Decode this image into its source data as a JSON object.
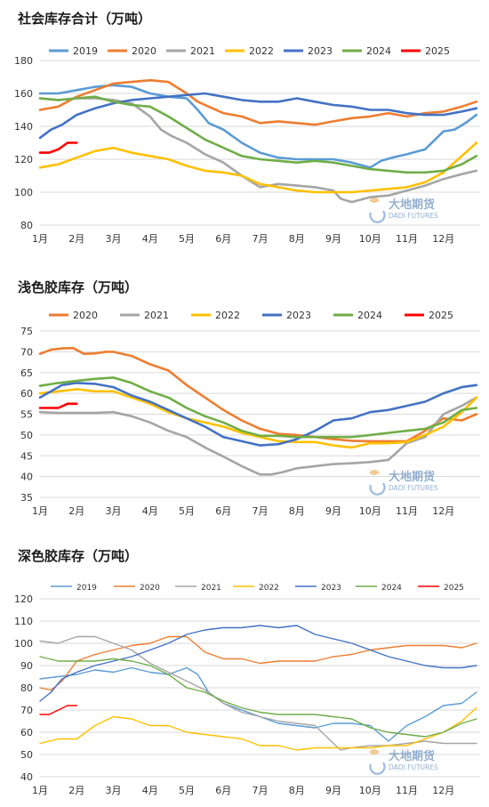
{
  "months": [
    "1月",
    "2月",
    "3月",
    "4月",
    "5月",
    "6月",
    "7月",
    "8月",
    "9月",
    "10月",
    "11月",
    "12月"
  ],
  "colors": {
    "2019": "#5B9BD5",
    "2020": "#ED7D31",
    "2021": "#A5A5A5",
    "2022": "#FFC000",
    "2023": "#4472C4",
    "2024": "#70AD47",
    "2025": "#FF0000"
  },
  "watermark": {
    "cn": "大地期货",
    "en": "DADI FUTURES",
    "icon": "dadi-logo-icon"
  },
  "chart_data": [
    {
      "type": "line",
      "title": "社会库存合计（万吨）",
      "ylim": [
        80,
        180
      ],
      "yticks": [
        80,
        100,
        120,
        140,
        160,
        180
      ],
      "legend_position": "top",
      "grid": true,
      "series": [
        {
          "name": "2019",
          "color": "#5B9BD5",
          "x": [
            1,
            1.5,
            2,
            2.5,
            3,
            3.5,
            4,
            4.5,
            5,
            5.3,
            5.6,
            6,
            6.5,
            7,
            7.5,
            8,
            8.5,
            9,
            9.5,
            10,
            10.3,
            10.6,
            11,
            11.5,
            12,
            12.3,
            12.6,
            12.9
          ],
          "values": [
            160,
            160,
            162,
            164,
            165,
            164,
            160,
            158,
            157,
            150,
            142,
            138,
            130,
            124,
            121,
            120,
            120,
            120,
            118,
            115,
            119,
            121,
            123,
            126,
            137,
            138,
            142,
            147
          ]
        },
        {
          "name": "2020",
          "color": "#ED7D31",
          "x": [
            1,
            1.5,
            2,
            2.5,
            3,
            3.5,
            4,
            4.5,
            5,
            5.3,
            5.6,
            6,
            6.5,
            7,
            7.5,
            8,
            8.5,
            9,
            9.5,
            10,
            10.5,
            11,
            11.5,
            12,
            12.5,
            12.9
          ],
          "values": [
            150,
            152,
            158,
            162,
            166,
            167,
            168,
            167,
            160,
            155,
            152,
            148,
            146,
            142,
            143,
            142,
            141,
            143,
            145,
            146,
            148,
            146,
            148,
            149,
            152,
            155
          ]
        },
        {
          "name": "2021",
          "color": "#A5A5A5",
          "x": [
            1,
            1.5,
            2,
            2.5,
            3,
            3.5,
            4,
            4.3,
            4.6,
            5,
            5.5,
            6,
            6.5,
            7,
            7.5,
            8,
            8.5,
            9,
            9.2,
            9.5,
            10,
            10.5,
            11,
            11.5,
            12,
            12.5,
            12.9
          ],
          "values": [
            157,
            156,
            157,
            157,
            156,
            154,
            146,
            138,
            134,
            130,
            123,
            118,
            110,
            103,
            105,
            104,
            103,
            101,
            96,
            94,
            97,
            98,
            101,
            104,
            108,
            111,
            113
          ]
        },
        {
          "name": "2022",
          "color": "#FFC000",
          "x": [
            1,
            1.5,
            2,
            2.5,
            3,
            3.5,
            4,
            4.5,
            5,
            5.5,
            6,
            6.5,
            7,
            7.5,
            8,
            8.5,
            9,
            9.5,
            10,
            10.5,
            11,
            11.5,
            12,
            12.5,
            12.9
          ],
          "values": [
            115,
            117,
            121,
            125,
            127,
            124,
            122,
            120,
            116,
            113,
            112,
            110,
            105,
            103,
            101,
            100,
            100,
            100,
            101,
            102,
            103,
            106,
            112,
            122,
            130
          ]
        },
        {
          "name": "2023",
          "color": "#4472C4",
          "x": [
            1,
            1.3,
            1.6,
            2,
            2.5,
            3,
            3.5,
            4,
            4.5,
            5,
            5.5,
            6,
            6.5,
            7,
            7.5,
            8,
            8.5,
            9,
            9.5,
            10,
            10.5,
            11,
            11.5,
            12,
            12.5,
            12.9
          ],
          "values": [
            133,
            138,
            141,
            147,
            151,
            154,
            156,
            157,
            158,
            159,
            160,
            158,
            156,
            155,
            155,
            157,
            155,
            153,
            152,
            150,
            150,
            148,
            147,
            147,
            149,
            151
          ]
        },
        {
          "name": "2024",
          "color": "#70AD47",
          "x": [
            1,
            1.5,
            2,
            2.5,
            3,
            3.5,
            4,
            4.5,
            5,
            5.5,
            6,
            6.5,
            7,
            7.5,
            8,
            8.5,
            9,
            9.5,
            10,
            10.5,
            11,
            11.5,
            12,
            12.5,
            12.9
          ],
          "values": [
            157,
            156,
            157,
            158,
            155,
            153,
            152,
            146,
            139,
            132,
            127,
            122,
            120,
            119,
            118,
            119,
            118,
            116,
            114,
            113,
            112,
            112,
            113,
            117,
            122
          ]
        },
        {
          "name": "2025",
          "color": "#FF0000",
          "x": [
            1,
            1.25,
            1.5,
            1.75,
            2
          ],
          "values": [
            124,
            124,
            126,
            130,
            130
          ]
        }
      ]
    },
    {
      "type": "line",
      "title": "浅色胶库存（万吨）",
      "ylim": [
        35,
        75
      ],
      "yticks": [
        35,
        40,
        45,
        50,
        55,
        60,
        65,
        70,
        75
      ],
      "legend_position": "top",
      "grid": true,
      "series": [
        {
          "name": "2020",
          "color": "#ED7D31",
          "x": [
            1,
            1.3,
            1.6,
            1.9,
            2.2,
            2.5,
            2.8,
            3,
            3.5,
            4,
            4.5,
            5,
            5.5,
            6,
            6.5,
            7,
            7.5,
            8,
            8.5,
            9,
            9.5,
            10,
            10.5,
            11,
            11.5,
            12,
            12.5,
            12.9
          ],
          "values": [
            69.5,
            70.5,
            70.8,
            70.9,
            69.5,
            69.6,
            70,
            70,
            69,
            67,
            65.5,
            62,
            59,
            56,
            53.5,
            51.5,
            50.3,
            50,
            49.5,
            49,
            48.6,
            48.5,
            48.5,
            48.5,
            51,
            54,
            53.5,
            55
          ]
        },
        {
          "name": "2021",
          "color": "#A5A5A5",
          "x": [
            1,
            1.5,
            2,
            2.5,
            3,
            3.5,
            4,
            4.5,
            5,
            5.5,
            6,
            6.5,
            7,
            7.3,
            7.6,
            8,
            8.5,
            9,
            9.5,
            10,
            10.5,
            11,
            11.5,
            12,
            12.5,
            12.9
          ],
          "values": [
            55.5,
            55.3,
            55.3,
            55.3,
            55.5,
            54.5,
            53,
            51,
            49.5,
            47,
            44.8,
            42.5,
            40.5,
            40.5,
            41,
            42,
            42.5,
            43,
            43.2,
            43.5,
            44,
            48,
            49.5,
            55,
            57,
            59
          ]
        },
        {
          "name": "2022",
          "color": "#FFC000",
          "x": [
            1,
            1.5,
            2,
            2.5,
            3,
            3.5,
            4,
            4.5,
            5,
            5.5,
            6,
            6.5,
            7,
            7.5,
            8,
            8.5,
            9,
            9.5,
            10,
            10.5,
            11,
            11.5,
            12,
            12.5,
            12.9
          ],
          "values": [
            60,
            60.5,
            61,
            60.5,
            60.5,
            59,
            57.5,
            55.5,
            54,
            53,
            52,
            50.5,
            49.5,
            48.5,
            48.3,
            48.3,
            47.5,
            47,
            48,
            48,
            48.3,
            50,
            52,
            55.5,
            59
          ]
        },
        {
          "name": "2023",
          "color": "#4472C4",
          "x": [
            1,
            1.3,
            1.6,
            2,
            2.5,
            3,
            3.5,
            4,
            4.5,
            5,
            5.5,
            6,
            6.5,
            7,
            7.5,
            8,
            8.5,
            9,
            9.5,
            10,
            10.5,
            11,
            11.5,
            12,
            12.5,
            12.9
          ],
          "values": [
            59,
            60.5,
            62,
            62.5,
            62.3,
            61.5,
            59.5,
            58,
            56,
            54,
            52,
            49.5,
            48.5,
            47.5,
            47.8,
            49,
            51,
            53.5,
            54,
            55.5,
            56,
            57,
            58,
            60,
            61.5,
            62
          ]
        },
        {
          "name": "2024",
          "color": "#70AD47",
          "x": [
            1,
            1.5,
            2,
            2.5,
            3,
            3.5,
            4,
            4.5,
            5,
            5.5,
            6,
            6.5,
            7,
            7.5,
            8,
            8.5,
            9,
            9.5,
            10,
            10.5,
            11,
            11.5,
            12,
            12.5,
            12.9
          ],
          "values": [
            61.8,
            62.5,
            63,
            63.5,
            63.8,
            62.5,
            60.5,
            59,
            56.5,
            54.5,
            53,
            51,
            49.8,
            49.8,
            49.5,
            49.5,
            49.5,
            49.5,
            50,
            50.5,
            51,
            51.5,
            53,
            56,
            56.5
          ]
        },
        {
          "name": "2025",
          "color": "#FF0000",
          "x": [
            1,
            1.25,
            1.5,
            1.75,
            2
          ],
          "values": [
            56.5,
            56.5,
            56.5,
            57.5,
            57.5
          ]
        }
      ]
    },
    {
      "type": "line",
      "title": "深色胶库存（万吨）",
      "ylim": [
        40,
        120
      ],
      "yticks": [
        40,
        50,
        60,
        70,
        80,
        90,
        100,
        110,
        120
      ],
      "legend_position": "top",
      "grid": true,
      "series": [
        {
          "name": "2019",
          "color": "#5B9BD5",
          "x": [
            1,
            1.5,
            2,
            2.5,
            3,
            3.5,
            4,
            4.5,
            5,
            5.3,
            5.6,
            6,
            6.5,
            7,
            7.5,
            8,
            8.5,
            9,
            9.5,
            10,
            10.5,
            11,
            11.5,
            12,
            12.5,
            12.9
          ],
          "values": [
            84,
            85,
            86,
            88,
            87,
            89,
            87,
            86,
            89,
            86,
            78,
            73,
            70,
            67,
            64,
            63,
            62,
            64,
            64,
            63,
            56,
            63,
            67,
            72,
            73,
            78
          ]
        },
        {
          "name": "2020",
          "color": "#ED7D31",
          "x": [
            1,
            1.3,
            1.6,
            2,
            2.5,
            3,
            3.5,
            4,
            4.5,
            5,
            5.5,
            6,
            6.5,
            7,
            7.5,
            8,
            8.5,
            9,
            9.5,
            10,
            10.5,
            11,
            11.5,
            12,
            12.5,
            12.9
          ],
          "values": [
            80,
            79,
            83,
            92,
            95,
            97,
            99,
            100,
            103,
            103,
            96,
            93,
            93,
            91,
            92,
            92,
            92,
            94,
            95,
            97,
            98,
            99,
            99,
            99,
            98,
            100
          ]
        },
        {
          "name": "2021",
          "color": "#A5A5A5",
          "x": [
            1,
            1.5,
            2,
            2.5,
            3,
            3.5,
            4,
            4.5,
            5,
            5.5,
            6,
            6.5,
            7,
            7.5,
            8,
            8.5,
            9,
            9.2,
            9.5,
            10,
            10.5,
            11,
            11.5,
            12,
            12.5,
            12.9
          ],
          "values": [
            101,
            100,
            103,
            103,
            100,
            97,
            91,
            87,
            83,
            79,
            73,
            69,
            67,
            65,
            64,
            63,
            55,
            52,
            53,
            54,
            54,
            55,
            56,
            55,
            55,
            55
          ]
        },
        {
          "name": "2022",
          "color": "#FFC000",
          "x": [
            1,
            1.5,
            2,
            2.5,
            3,
            3.5,
            4,
            4.5,
            5,
            5.5,
            6,
            6.5,
            7,
            7.5,
            8,
            8.5,
            9,
            9.5,
            10,
            10.5,
            11,
            11.5,
            12,
            12.5,
            12.9
          ],
          "values": [
            55,
            57,
            57,
            63,
            67,
            66,
            63,
            63,
            60,
            59,
            58,
            57,
            54,
            54,
            52,
            53,
            53,
            53,
            53,
            54,
            54,
            57,
            60,
            65,
            71
          ]
        },
        {
          "name": "2023",
          "color": "#4472C4",
          "x": [
            1,
            1.3,
            1.6,
            2,
            2.5,
            3,
            3.5,
            4,
            4.5,
            5,
            5.5,
            6,
            6.5,
            7,
            7.5,
            8,
            8.5,
            9,
            9.5,
            10,
            10.5,
            11,
            11.5,
            12,
            12.5,
            12.9
          ],
          "values": [
            74,
            78,
            84,
            87,
            90,
            92,
            94,
            97,
            100,
            104,
            106,
            107,
            107,
            108,
            107,
            108,
            104,
            102,
            100,
            97,
            94,
            92,
            90,
            89,
            89,
            90
          ]
        },
        {
          "name": "2024",
          "color": "#70AD47",
          "x": [
            1,
            1.5,
            2,
            2.5,
            3,
            3.5,
            4,
            4.5,
            5,
            5.5,
            6,
            6.5,
            7,
            7.5,
            8,
            8.5,
            9,
            9.5,
            10,
            10.5,
            11,
            11.5,
            12,
            12.5,
            12.9
          ],
          "values": [
            94,
            92,
            92,
            92,
            93,
            92,
            90,
            86,
            80,
            78,
            74,
            71,
            69,
            68,
            68,
            68,
            67,
            66,
            62,
            60,
            59,
            58,
            60,
            64,
            66
          ]
        },
        {
          "name": "2025",
          "color": "#FF0000",
          "x": [
            1,
            1.25,
            1.5,
            1.75,
            2
          ],
          "values": [
            68,
            68,
            70,
            72,
            72
          ]
        }
      ]
    }
  ]
}
